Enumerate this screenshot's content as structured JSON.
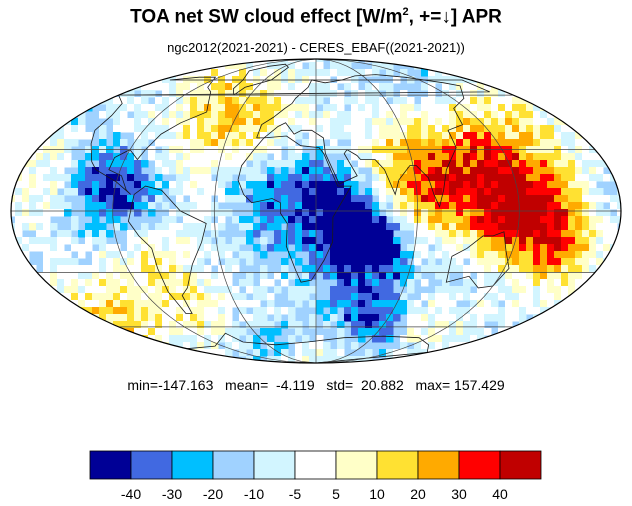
{
  "title": {
    "main": "TOA net SW cloud effect [W/m",
    "sup": "2",
    "tail": ", +=↓]  APR"
  },
  "subtitle": "ngc2012(2021-2021) - CERES_EBAF((2021-2021))",
  "stats": {
    "min_label": "min=",
    "min": "-147.163",
    "mean_label": "mean=",
    "mean": "-4.119",
    "std_label": "std=",
    "std": "20.882",
    "max_label": "max=",
    "max": "157.429"
  },
  "colorbar": {
    "colors": [
      "#000096",
      "#4169e1",
      "#00bfff",
      "#a0d2ff",
      "#d2f5ff",
      "#ffffff",
      "#ffffc8",
      "#ffe132",
      "#ffaa00",
      "#ff0000",
      "#c00000"
    ],
    "labels": [
      "-40",
      "-30",
      "-20",
      "-10",
      "-5",
      "5",
      "10",
      "20",
      "30",
      "40"
    ]
  },
  "map": {
    "projection": "Mollweide",
    "month": "APR"
  }
}
